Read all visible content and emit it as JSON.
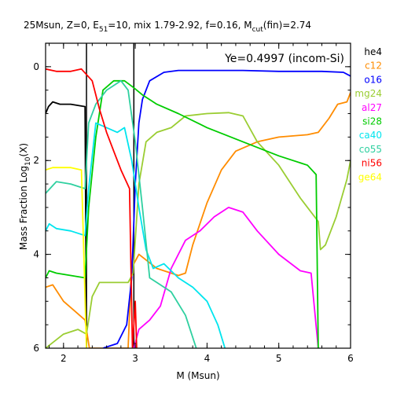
{
  "chart_data": {
    "type": "line",
    "title": "25Msun, Z=0, E51=10, mix 1.79-2.92, f=0.16, Mcut(fin)=2.74",
    "title_parts": {
      "prefix": "25Msun, Z=0, E",
      "e_sub": "51",
      "mid": "=10, mix 1.79-2.92, f=0.16, M",
      "m_sub": "cut",
      "suffix": "(fin)=2.74"
    },
    "xlabel": "M (Msun)",
    "ylabel": "Mass Fraction Log10(X)",
    "ylabel_parts": {
      "prefix": "Mass Fraction Log",
      "sub": "10",
      "suffix": "(X)"
    },
    "annotation": "Ye=0.4997 (incom-Si)",
    "xlim": [
      1.75,
      6.0
    ],
    "ylim": [
      -6,
      0.5
    ],
    "x_ticks": [
      2,
      3,
      4,
      5,
      6
    ],
    "y_ticks": [
      0,
      -2,
      -4,
      -6
    ],
    "y_tick_labels": [
      "0",
      "2",
      "4",
      "6"
    ],
    "vlines": [
      2.32,
      2.98
    ],
    "legend_placement": "right-outside",
    "grid": false,
    "series": [
      {
        "name": "he4",
        "color": "#000000",
        "points": [
          [
            1.75,
            -1.0
          ],
          [
            1.79,
            -0.85
          ],
          [
            1.85,
            -0.75
          ],
          [
            1.95,
            -0.8
          ],
          [
            2.1,
            -0.8
          ],
          [
            2.3,
            -0.85
          ],
          [
            2.32,
            -6.0
          ]
        ]
      },
      {
        "name": "c12",
        "color": "#ff8c00",
        "points": [
          [
            1.75,
            -4.7
          ],
          [
            1.85,
            -4.65
          ],
          [
            2.0,
            -5.0
          ],
          [
            2.15,
            -5.2
          ],
          [
            2.3,
            -5.4
          ],
          [
            2.36,
            -6.0
          ],
          [
            2.9,
            -6.0
          ],
          [
            2.94,
            -4.5
          ],
          [
            2.98,
            -4.2
          ],
          [
            3.05,
            -4.0
          ],
          [
            3.3,
            -4.3
          ],
          [
            3.6,
            -4.45
          ],
          [
            3.7,
            -4.4
          ],
          [
            3.8,
            -3.8
          ],
          [
            4.0,
            -2.9
          ],
          [
            4.2,
            -2.2
          ],
          [
            4.4,
            -1.8
          ],
          [
            4.7,
            -1.6
          ],
          [
            5.0,
            -1.5
          ],
          [
            5.4,
            -1.45
          ],
          [
            5.55,
            -1.4
          ],
          [
            5.7,
            -1.1
          ],
          [
            5.82,
            -0.8
          ],
          [
            5.95,
            -0.75
          ],
          [
            6.0,
            -0.55
          ]
        ]
      },
      {
        "name": "o16",
        "color": "#0000ff",
        "points": [
          [
            2.55,
            -6.0
          ],
          [
            2.75,
            -5.9
          ],
          [
            2.88,
            -5.5
          ],
          [
            2.95,
            -4.5
          ],
          [
            3.0,
            -2.5
          ],
          [
            3.05,
            -1.2
          ],
          [
            3.1,
            -0.7
          ],
          [
            3.2,
            -0.3
          ],
          [
            3.4,
            -0.12
          ],
          [
            3.6,
            -0.08
          ],
          [
            4.0,
            -0.08
          ],
          [
            4.5,
            -0.08
          ],
          [
            5.0,
            -0.1
          ],
          [
            5.6,
            -0.1
          ],
          [
            5.9,
            -0.12
          ],
          [
            6.0,
            -0.2
          ]
        ]
      },
      {
        "name": "mg24",
        "color": "#9acd32",
        "points": [
          [
            1.75,
            -6.0
          ],
          [
            2.0,
            -5.7
          ],
          [
            2.2,
            -5.6
          ],
          [
            2.32,
            -5.7
          ],
          [
            2.35,
            -5.4
          ],
          [
            2.4,
            -4.9
          ],
          [
            2.5,
            -4.6
          ],
          [
            2.7,
            -4.6
          ],
          [
            2.9,
            -4.6
          ],
          [
            2.97,
            -4.4
          ],
          [
            3.05,
            -2.5
          ],
          [
            3.15,
            -1.6
          ],
          [
            3.3,
            -1.4
          ],
          [
            3.5,
            -1.3
          ],
          [
            3.7,
            -1.05
          ],
          [
            4.0,
            -1.0
          ],
          [
            4.3,
            -0.98
          ],
          [
            4.5,
            -1.05
          ],
          [
            4.7,
            -1.6
          ],
          [
            5.0,
            -2.1
          ],
          [
            5.3,
            -2.8
          ],
          [
            5.55,
            -3.3
          ],
          [
            5.58,
            -3.9
          ],
          [
            5.65,
            -3.8
          ],
          [
            5.8,
            -3.2
          ],
          [
            5.95,
            -2.4
          ],
          [
            6.0,
            -2.0
          ]
        ]
      },
      {
        "name": "al27",
        "color": "#ff00ff",
        "points": [
          [
            2.98,
            -6.0
          ],
          [
            3.05,
            -5.6
          ],
          [
            3.2,
            -5.4
          ],
          [
            3.35,
            -5.1
          ],
          [
            3.5,
            -4.3
          ],
          [
            3.7,
            -3.7
          ],
          [
            3.9,
            -3.5
          ],
          [
            4.1,
            -3.2
          ],
          [
            4.3,
            -3.0
          ],
          [
            4.5,
            -3.1
          ],
          [
            4.7,
            -3.5
          ],
          [
            5.0,
            -4.0
          ],
          [
            5.3,
            -4.35
          ],
          [
            5.45,
            -4.4
          ],
          [
            5.55,
            -6.0
          ]
        ]
      },
      {
        "name": "si28",
        "color": "#00cc00",
        "points": [
          [
            1.75,
            -4.5
          ],
          [
            1.8,
            -4.35
          ],
          [
            1.9,
            -4.4
          ],
          [
            2.1,
            -4.45
          ],
          [
            2.3,
            -4.5
          ],
          [
            2.35,
            -3.0
          ],
          [
            2.45,
            -1.5
          ],
          [
            2.55,
            -0.5
          ],
          [
            2.7,
            -0.3
          ],
          [
            2.85,
            -0.3
          ],
          [
            2.98,
            -0.45
          ],
          [
            3.1,
            -0.6
          ],
          [
            3.3,
            -0.8
          ],
          [
            3.6,
            -1.0
          ],
          [
            4.0,
            -1.3
          ],
          [
            4.5,
            -1.6
          ],
          [
            5.0,
            -1.9
          ],
          [
            5.4,
            -2.1
          ],
          [
            5.52,
            -2.3
          ],
          [
            5.55,
            -6.0
          ]
        ]
      },
      {
        "name": "ca40",
        "color": "#00e5ee",
        "points": [
          [
            1.75,
            -3.5
          ],
          [
            1.8,
            -3.35
          ],
          [
            1.9,
            -3.45
          ],
          [
            2.1,
            -3.5
          ],
          [
            2.3,
            -3.6
          ],
          [
            2.35,
            -2.6
          ],
          [
            2.45,
            -1.2
          ],
          [
            2.6,
            -1.3
          ],
          [
            2.75,
            -1.4
          ],
          [
            2.85,
            -1.3
          ],
          [
            2.95,
            -2.0
          ],
          [
            3.05,
            -3.0
          ],
          [
            3.15,
            -3.9
          ],
          [
            3.25,
            -4.3
          ],
          [
            3.4,
            -4.2
          ],
          [
            3.6,
            -4.5
          ],
          [
            3.8,
            -4.7
          ],
          [
            4.0,
            -5.0
          ],
          [
            4.15,
            -5.5
          ],
          [
            4.25,
            -6.0
          ]
        ]
      },
      {
        "name": "co55",
        "color": "#2fd0a0",
        "points": [
          [
            1.75,
            -2.7
          ],
          [
            1.9,
            -2.45
          ],
          [
            2.1,
            -2.5
          ],
          [
            2.3,
            -2.6
          ],
          [
            2.35,
            -1.2
          ],
          [
            2.45,
            -0.8
          ],
          [
            2.6,
            -0.5
          ],
          [
            2.8,
            -0.3
          ],
          [
            2.9,
            -0.5
          ],
          [
            3.0,
            -1.6
          ],
          [
            3.1,
            -3.0
          ],
          [
            3.2,
            -4.5
          ],
          [
            3.3,
            -4.6
          ],
          [
            3.5,
            -4.8
          ],
          [
            3.7,
            -5.3
          ],
          [
            3.85,
            -6.0
          ]
        ]
      },
      {
        "name": "ni56",
        "color": "#ff0000",
        "points": [
          [
            1.75,
            -0.05
          ],
          [
            1.9,
            -0.1
          ],
          [
            2.1,
            -0.1
          ],
          [
            2.25,
            -0.05
          ],
          [
            2.4,
            -0.3
          ],
          [
            2.5,
            -0.9
          ],
          [
            2.6,
            -1.4
          ],
          [
            2.7,
            -1.8
          ],
          [
            2.8,
            -2.2
          ],
          [
            2.92,
            -2.6
          ],
          [
            2.96,
            -6.0
          ],
          [
            3.0,
            -5.0
          ],
          [
            3.02,
            -6.0
          ]
        ]
      },
      {
        "name": "ge64",
        "color": "#ffff00",
        "points": [
          [
            1.75,
            -2.2
          ],
          [
            1.85,
            -2.15
          ],
          [
            2.1,
            -2.15
          ],
          [
            2.25,
            -2.2
          ],
          [
            2.32,
            -6.0
          ]
        ]
      }
    ]
  }
}
